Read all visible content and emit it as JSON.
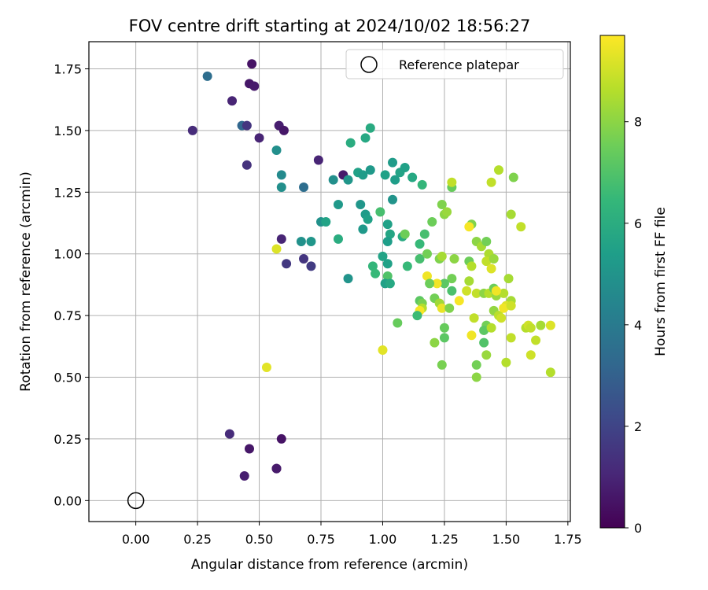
{
  "chart_data": {
    "type": "scatter",
    "title": "FOV centre drift starting at 2024/10/02 18:56:27",
    "xlabel": "Angular distance from reference (arcmin)",
    "ylabel": "Rotation from reference (arcmin)",
    "xlim": [
      -0.19,
      1.76
    ],
    "ylim": [
      -0.085,
      1.86
    ],
    "xticks": [
      "0.00",
      "0.25",
      "0.50",
      "0.75",
      "1.00",
      "1.25",
      "1.50",
      "1.75"
    ],
    "yticks": [
      "0.00",
      "0.25",
      "0.50",
      "0.75",
      "1.00",
      "1.25",
      "1.50",
      "1.75"
    ],
    "grid": true,
    "legend": {
      "placement": "top-right",
      "entries": [
        "Reference platepar"
      ]
    },
    "reference_point": {
      "x": 0.0,
      "y": 0.0,
      "label": "Reference platepar"
    },
    "colorbar": {
      "label": "Hours from first FF file",
      "range": [
        0,
        9.7
      ],
      "ticks": [
        "0",
        "2",
        "4",
        "6",
        "8"
      ],
      "colormap": [
        "#440154",
        "#482878",
        "#3e4989",
        "#31688e",
        "#26828e",
        "#1f9e89",
        "#35b779",
        "#6ece58",
        "#b5de2b",
        "#fde725"
      ]
    },
    "points": [
      {
        "x": 0.47,
        "y": 1.77,
        "h": 0.5
      },
      {
        "x": 0.29,
        "y": 1.72,
        "h": 3.5
      },
      {
        "x": 0.46,
        "y": 1.69,
        "h": 0.6
      },
      {
        "x": 0.48,
        "y": 1.68,
        "h": 0.7
      },
      {
        "x": 0.39,
        "y": 1.62,
        "h": 1.0
      },
      {
        "x": 0.23,
        "y": 1.5,
        "h": 1.2
      },
      {
        "x": 0.43,
        "y": 1.52,
        "h": 3.2
      },
      {
        "x": 0.45,
        "y": 1.52,
        "h": 1.5
      },
      {
        "x": 0.58,
        "y": 1.52,
        "h": 0.8
      },
      {
        "x": 0.6,
        "y": 1.5,
        "h": 0.6
      },
      {
        "x": 0.5,
        "y": 1.47,
        "h": 1.0
      },
      {
        "x": 0.57,
        "y": 1.42,
        "h": 4.8
      },
      {
        "x": 0.45,
        "y": 1.36,
        "h": 1.4
      },
      {
        "x": 0.74,
        "y": 1.38,
        "h": 1.0
      },
      {
        "x": 0.59,
        "y": 1.32,
        "h": 4.6
      },
      {
        "x": 0.59,
        "y": 1.27,
        "h": 4.8
      },
      {
        "x": 0.68,
        "y": 1.27,
        "h": 3.5
      },
      {
        "x": 0.84,
        "y": 1.32,
        "h": 0.7
      },
      {
        "x": 0.8,
        "y": 1.3,
        "h": 4.8
      },
      {
        "x": 0.86,
        "y": 1.3,
        "h": 5.1
      },
      {
        "x": 0.87,
        "y": 1.45,
        "h": 6.0
      },
      {
        "x": 0.93,
        "y": 1.47,
        "h": 5.8
      },
      {
        "x": 0.95,
        "y": 1.51,
        "h": 5.9
      },
      {
        "x": 0.9,
        "y": 1.33,
        "h": 5.5
      },
      {
        "x": 0.92,
        "y": 1.32,
        "h": 5.3
      },
      {
        "x": 0.95,
        "y": 1.34,
        "h": 5.2
      },
      {
        "x": 1.01,
        "y": 1.32,
        "h": 5.5
      },
      {
        "x": 1.04,
        "y": 1.37,
        "h": 5.3
      },
      {
        "x": 1.05,
        "y": 1.3,
        "h": 5.4
      },
      {
        "x": 1.07,
        "y": 1.33,
        "h": 5.6
      },
      {
        "x": 1.09,
        "y": 1.35,
        "h": 5.5
      },
      {
        "x": 1.12,
        "y": 1.31,
        "h": 5.8
      },
      {
        "x": 1.16,
        "y": 1.28,
        "h": 6.4
      },
      {
        "x": 0.82,
        "y": 1.2,
        "h": 5.2
      },
      {
        "x": 0.91,
        "y": 1.2,
        "h": 5.1
      },
      {
        "x": 0.93,
        "y": 1.16,
        "h": 5.3
      },
      {
        "x": 1.04,
        "y": 1.22,
        "h": 5.0
      },
      {
        "x": 0.94,
        "y": 1.14,
        "h": 5.5
      },
      {
        "x": 0.99,
        "y": 1.17,
        "h": 6.8
      },
      {
        "x": 0.75,
        "y": 1.13,
        "h": 4.9
      },
      {
        "x": 0.77,
        "y": 1.13,
        "h": 5.6
      },
      {
        "x": 0.92,
        "y": 1.1,
        "h": 5.2
      },
      {
        "x": 1.02,
        "y": 1.12,
        "h": 5.5
      },
      {
        "x": 1.03,
        "y": 1.08,
        "h": 5.7
      },
      {
        "x": 1.02,
        "y": 1.05,
        "h": 5.4
      },
      {
        "x": 1.08,
        "y": 1.07,
        "h": 5.9
      },
      {
        "x": 1.09,
        "y": 1.08,
        "h": 7.5
      },
      {
        "x": 0.82,
        "y": 1.06,
        "h": 6.0
      },
      {
        "x": 0.59,
        "y": 1.06,
        "h": 1.0
      },
      {
        "x": 0.67,
        "y": 1.05,
        "h": 4.9
      },
      {
        "x": 0.71,
        "y": 1.05,
        "h": 5.1
      },
      {
        "x": 0.57,
        "y": 1.02,
        "h": 9.2
      },
      {
        "x": 0.68,
        "y": 0.98,
        "h": 1.5
      },
      {
        "x": 0.61,
        "y": 0.96,
        "h": 1.6
      },
      {
        "x": 0.71,
        "y": 0.95,
        "h": 1.7
      },
      {
        "x": 1.0,
        "y": 0.99,
        "h": 5.6
      },
      {
        "x": 1.02,
        "y": 0.96,
        "h": 5.5
      },
      {
        "x": 1.1,
        "y": 0.95,
        "h": 6.5
      },
      {
        "x": 0.96,
        "y": 0.95,
        "h": 6.4
      },
      {
        "x": 0.97,
        "y": 0.92,
        "h": 6.5
      },
      {
        "x": 1.02,
        "y": 0.91,
        "h": 7.0
      },
      {
        "x": 1.01,
        "y": 0.88,
        "h": 5.5
      },
      {
        "x": 1.03,
        "y": 0.88,
        "h": 5.8
      },
      {
        "x": 0.86,
        "y": 0.9,
        "h": 5.0
      },
      {
        "x": 1.15,
        "y": 1.04,
        "h": 6.5
      },
      {
        "x": 1.17,
        "y": 1.08,
        "h": 6.8
      },
      {
        "x": 1.2,
        "y": 1.13,
        "h": 7.5
      },
      {
        "x": 1.24,
        "y": 1.2,
        "h": 7.8
      },
      {
        "x": 1.25,
        "y": 1.16,
        "h": 8.0
      },
      {
        "x": 1.26,
        "y": 1.17,
        "h": 8.2
      },
      {
        "x": 1.28,
        "y": 1.27,
        "h": 7.4
      },
      {
        "x": 1.28,
        "y": 1.29,
        "h": 8.8
      },
      {
        "x": 1.15,
        "y": 0.98,
        "h": 6.8
      },
      {
        "x": 1.18,
        "y": 1.0,
        "h": 7.6
      },
      {
        "x": 1.23,
        "y": 0.98,
        "h": 7.8
      },
      {
        "x": 1.24,
        "y": 0.99,
        "h": 8.4
      },
      {
        "x": 1.29,
        "y": 0.98,
        "h": 8.0
      },
      {
        "x": 1.35,
        "y": 0.97,
        "h": 7.5
      },
      {
        "x": 1.36,
        "y": 0.95,
        "h": 8.6
      },
      {
        "x": 1.38,
        "y": 1.05,
        "h": 8.0
      },
      {
        "x": 1.4,
        "y": 1.03,
        "h": 8.4
      },
      {
        "x": 1.36,
        "y": 1.12,
        "h": 7.8
      },
      {
        "x": 1.35,
        "y": 1.11,
        "h": 9.6
      },
      {
        "x": 1.42,
        "y": 1.05,
        "h": 7.6
      },
      {
        "x": 1.43,
        "y": 1.0,
        "h": 8.5
      },
      {
        "x": 1.42,
        "y": 0.97,
        "h": 8.8
      },
      {
        "x": 1.45,
        "y": 0.98,
        "h": 8.2
      },
      {
        "x": 1.44,
        "y": 0.94,
        "h": 9.2
      },
      {
        "x": 1.44,
        "y": 1.29,
        "h": 8.8
      },
      {
        "x": 1.47,
        "y": 1.34,
        "h": 8.6
      },
      {
        "x": 1.53,
        "y": 1.31,
        "h": 7.8
      },
      {
        "x": 1.52,
        "y": 1.16,
        "h": 8.4
      },
      {
        "x": 1.56,
        "y": 1.11,
        "h": 8.8
      },
      {
        "x": 1.51,
        "y": 0.9,
        "h": 8.4
      },
      {
        "x": 1.28,
        "y": 0.9,
        "h": 7.6
      },
      {
        "x": 1.25,
        "y": 0.88,
        "h": 7.2
      },
      {
        "x": 1.22,
        "y": 0.88,
        "h": 9.5
      },
      {
        "x": 1.18,
        "y": 0.91,
        "h": 9.5
      },
      {
        "x": 1.19,
        "y": 0.88,
        "h": 7.5
      },
      {
        "x": 1.28,
        "y": 0.85,
        "h": 6.9
      },
      {
        "x": 1.15,
        "y": 0.81,
        "h": 7.2
      },
      {
        "x": 1.16,
        "y": 0.8,
        "h": 7.7
      },
      {
        "x": 1.16,
        "y": 0.78,
        "h": 8.6
      },
      {
        "x": 1.15,
        "y": 0.77,
        "h": 9.6
      },
      {
        "x": 1.14,
        "y": 0.75,
        "h": 6.6
      },
      {
        "x": 1.21,
        "y": 0.82,
        "h": 7.6
      },
      {
        "x": 1.23,
        "y": 0.8,
        "h": 8.3
      },
      {
        "x": 1.24,
        "y": 0.78,
        "h": 9.4
      },
      {
        "x": 1.27,
        "y": 0.78,
        "h": 7.8
      },
      {
        "x": 1.31,
        "y": 0.81,
        "h": 9.6
      },
      {
        "x": 1.34,
        "y": 0.85,
        "h": 9.0
      },
      {
        "x": 1.35,
        "y": 0.89,
        "h": 8.4
      },
      {
        "x": 1.38,
        "y": 0.84,
        "h": 8.8
      },
      {
        "x": 1.41,
        "y": 0.84,
        "h": 8.0
      },
      {
        "x": 1.43,
        "y": 0.84,
        "h": 8.6
      },
      {
        "x": 1.45,
        "y": 0.86,
        "h": 7.5
      },
      {
        "x": 1.46,
        "y": 0.83,
        "h": 8.2
      },
      {
        "x": 1.49,
        "y": 0.84,
        "h": 8.6
      },
      {
        "x": 1.52,
        "y": 0.81,
        "h": 8.4
      },
      {
        "x": 1.46,
        "y": 0.85,
        "h": 9.5
      },
      {
        "x": 1.45,
        "y": 0.77,
        "h": 8.1
      },
      {
        "x": 1.47,
        "y": 0.75,
        "h": 8.7
      },
      {
        "x": 1.5,
        "y": 0.79,
        "h": 9.2
      },
      {
        "x": 1.49,
        "y": 0.78,
        "h": 9.5
      },
      {
        "x": 1.48,
        "y": 0.74,
        "h": 9.0
      },
      {
        "x": 1.52,
        "y": 0.79,
        "h": 9.0
      },
      {
        "x": 1.37,
        "y": 0.74,
        "h": 8.8
      },
      {
        "x": 1.42,
        "y": 0.71,
        "h": 7.6
      },
      {
        "x": 1.41,
        "y": 0.69,
        "h": 7.2
      },
      {
        "x": 1.44,
        "y": 0.7,
        "h": 8.6
      },
      {
        "x": 1.36,
        "y": 0.67,
        "h": 9.5
      },
      {
        "x": 1.25,
        "y": 0.7,
        "h": 7.4
      },
      {
        "x": 1.25,
        "y": 0.66,
        "h": 7.2
      },
      {
        "x": 1.41,
        "y": 0.64,
        "h": 7.0
      },
      {
        "x": 1.42,
        "y": 0.59,
        "h": 8.2
      },
      {
        "x": 1.38,
        "y": 0.55,
        "h": 7.6
      },
      {
        "x": 1.38,
        "y": 0.5,
        "h": 8.0
      },
      {
        "x": 1.21,
        "y": 0.64,
        "h": 8.0
      },
      {
        "x": 1.24,
        "y": 0.55,
        "h": 7.7
      },
      {
        "x": 1.06,
        "y": 0.72,
        "h": 7.4
      },
      {
        "x": 1.5,
        "y": 0.56,
        "h": 8.6
      },
      {
        "x": 1.52,
        "y": 0.66,
        "h": 8.8
      },
      {
        "x": 1.58,
        "y": 0.7,
        "h": 8.6
      },
      {
        "x": 1.59,
        "y": 0.71,
        "h": 9.0
      },
      {
        "x": 1.6,
        "y": 0.7,
        "h": 8.8
      },
      {
        "x": 1.62,
        "y": 0.65,
        "h": 8.8
      },
      {
        "x": 1.64,
        "y": 0.71,
        "h": 8.4
      },
      {
        "x": 1.68,
        "y": 0.71,
        "h": 9.2
      },
      {
        "x": 1.6,
        "y": 0.59,
        "h": 9.0
      },
      {
        "x": 1.68,
        "y": 0.52,
        "h": 8.6
      },
      {
        "x": 1.0,
        "y": 0.61,
        "h": 9.3
      },
      {
        "x": 0.53,
        "y": 0.54,
        "h": 9.3
      },
      {
        "x": 0.38,
        "y": 0.27,
        "h": 1.2
      },
      {
        "x": 0.59,
        "y": 0.25,
        "h": 0.5
      },
      {
        "x": 0.46,
        "y": 0.21,
        "h": 0.6
      },
      {
        "x": 0.44,
        "y": 0.1,
        "h": 0.8
      },
      {
        "x": 0.57,
        "y": 0.13,
        "h": 0.6
      },
      {
        "x": 0.57,
        "y": 0.13,
        "h": 0.7
      }
    ]
  }
}
